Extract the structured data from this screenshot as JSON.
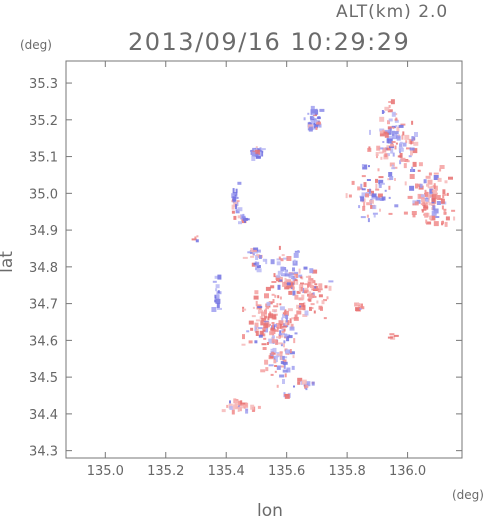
{
  "header": {
    "altitude_label": "ALT(km) 2.0",
    "datetime": "2013/09/16 10:29:29"
  },
  "chart_data": {
    "type": "scatter",
    "title": "2013/09/16 10:29:29",
    "subtitle": "ALT(km) 2.0",
    "xlabel": "lon",
    "ylabel": "lat",
    "x_unit": "(deg)",
    "y_unit": "(deg)",
    "xlim": [
      134.87,
      136.18
    ],
    "ylim": [
      34.28,
      35.36
    ],
    "x_ticks": [
      "135.0",
      "135.2",
      "135.4",
      "135.6",
      "135.8",
      "136.0"
    ],
    "x_tick_values": [
      135.0,
      135.2,
      135.4,
      135.6,
      135.8,
      136.0
    ],
    "y_ticks": [
      "34.3",
      "34.4",
      "34.5",
      "34.6",
      "34.7",
      "34.8",
      "34.9",
      "35.0",
      "35.1",
      "35.2",
      "35.3"
    ],
    "y_tick_values": [
      34.3,
      34.4,
      34.5,
      34.6,
      34.7,
      34.8,
      34.9,
      35.0,
      35.1,
      35.2,
      35.3
    ],
    "grid": false,
    "colors": {
      "positive": "#f08080",
      "negative": "#8080e8",
      "frame": "#777777"
    },
    "clusters": [
      {
        "lon": 135.69,
        "lat": 35.2,
        "slon": 0.02,
        "slat": 0.02,
        "n": 40,
        "sign": -1
      },
      {
        "lon": 135.5,
        "lat": 35.11,
        "slon": 0.015,
        "slat": 0.012,
        "n": 30,
        "sign": -1
      },
      {
        "lon": 135.43,
        "lat": 34.99,
        "slon": 0.01,
        "slat": 0.03,
        "n": 25,
        "sign": -1
      },
      {
        "lon": 135.46,
        "lat": 34.93,
        "slon": 0.012,
        "slat": 0.008,
        "n": 12,
        "sign": -1
      },
      {
        "lon": 135.96,
        "lat": 35.14,
        "slon": 0.05,
        "slat": 0.07,
        "n": 120,
        "sign": 0
      },
      {
        "lon": 136.07,
        "lat": 34.98,
        "slon": 0.05,
        "slat": 0.06,
        "n": 110,
        "sign": 1
      },
      {
        "lon": 135.88,
        "lat": 35.0,
        "slon": 0.05,
        "slat": 0.05,
        "n": 60,
        "sign": 0
      },
      {
        "lon": 135.61,
        "lat": 34.78,
        "slon": 0.04,
        "slat": 0.05,
        "n": 70,
        "sign": 0
      },
      {
        "lon": 135.68,
        "lat": 34.73,
        "slon": 0.04,
        "slat": 0.04,
        "n": 70,
        "sign": 1
      },
      {
        "lon": 135.55,
        "lat": 34.66,
        "slon": 0.06,
        "slat": 0.05,
        "n": 110,
        "sign": 1
      },
      {
        "lon": 135.58,
        "lat": 34.58,
        "slon": 0.04,
        "slat": 0.06,
        "n": 80,
        "sign": 0
      },
      {
        "lon": 135.5,
        "lat": 34.82,
        "slon": 0.02,
        "slat": 0.03,
        "n": 25,
        "sign": 0
      },
      {
        "lon": 135.37,
        "lat": 34.72,
        "slon": 0.01,
        "slat": 0.03,
        "n": 15,
        "sign": -1
      },
      {
        "lon": 135.84,
        "lat": 34.69,
        "slon": 0.01,
        "slat": 0.01,
        "n": 10,
        "sign": 1
      },
      {
        "lon": 135.45,
        "lat": 34.42,
        "slon": 0.04,
        "slat": 0.01,
        "n": 30,
        "sign": 1
      },
      {
        "lon": 135.66,
        "lat": 34.48,
        "slon": 0.03,
        "slat": 0.01,
        "n": 12,
        "sign": 0
      },
      {
        "lon": 135.6,
        "lat": 34.45,
        "slon": 0.01,
        "slat": 0.006,
        "n": 5,
        "sign": 1
      },
      {
        "lon": 135.95,
        "lat": 34.61,
        "slon": 0.01,
        "slat": 0.006,
        "n": 4,
        "sign": 1
      },
      {
        "lon": 135.3,
        "lat": 34.88,
        "slon": 0.01,
        "slat": 0.01,
        "n": 4,
        "sign": 0
      }
    ]
  }
}
